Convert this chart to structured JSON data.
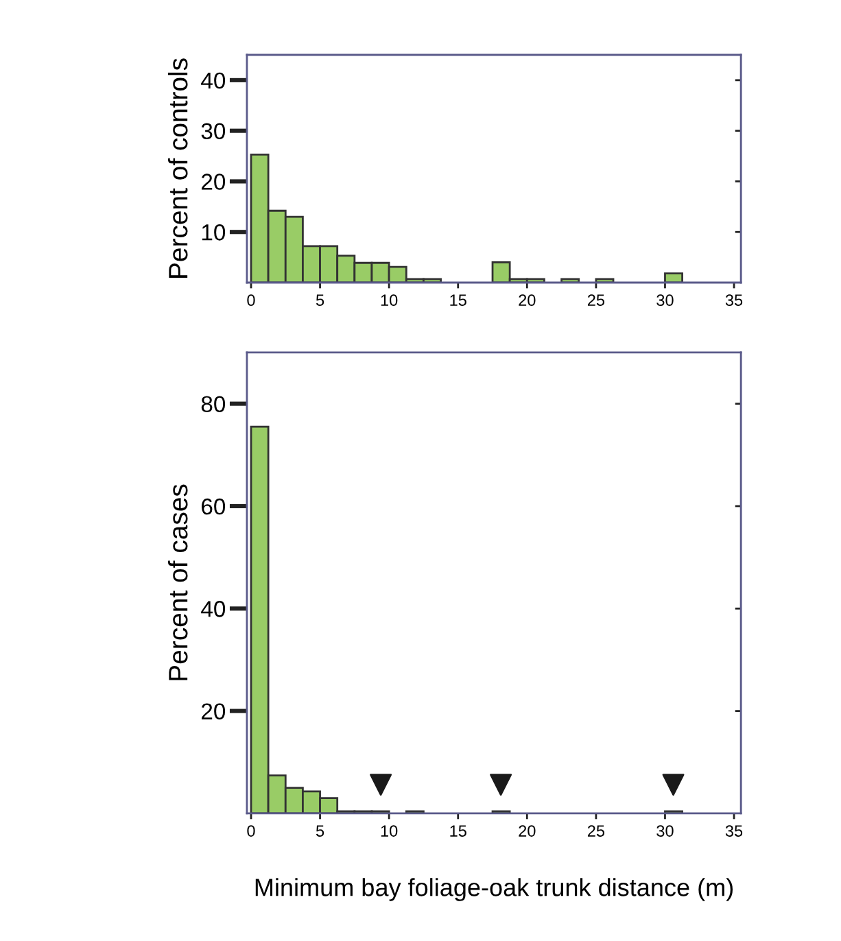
{
  "chart_data": [
    {
      "type": "histogram",
      "ylabel": "Percent of controls",
      "color": "#99cc66",
      "bins": [
        0,
        1.25,
        2.5,
        3.75,
        5,
        6.25,
        7.5,
        8.75,
        10,
        11.25,
        12.5,
        13.75,
        15,
        16.25,
        17.5,
        18.75,
        20,
        21.25,
        22.5,
        23.75,
        25,
        26.25,
        27.5,
        28.75,
        30,
        31.25
      ],
      "values": [
        25.3,
        14.2,
        13.0,
        7.2,
        7.2,
        5.3,
        3.9,
        3.9,
        3.1,
        0.7,
        0.7,
        0,
        0,
        0,
        4.0,
        0.7,
        0.7,
        0,
        0.7,
        0,
        0.7,
        0,
        0,
        0,
        1.8
      ],
      "xlim": [
        -0.3,
        35.5
      ],
      "ylim": [
        0,
        45
      ],
      "xticks": [
        0,
        5,
        10,
        15,
        20,
        25,
        30,
        35
      ],
      "yticks": [
        10,
        20,
        30,
        40
      ]
    },
    {
      "type": "histogram",
      "ylabel": "Percent of cases",
      "xlabel": "Minimum bay foliage-oak trunk distance (m)",
      "bins": [
        0,
        1.25,
        2.5,
        3.75,
        5,
        6.25,
        7.5,
        8.75,
        10,
        11.25,
        12.5,
        13.75,
        15,
        16.25,
        17.5,
        18.75,
        20,
        21.25,
        22.5,
        23.75,
        25,
        26.25,
        27.5,
        28.75,
        30,
        31.25
      ],
      "series": [
        {
          "type": "histogram",
          "color": "#99cc66",
          "values": [
            75.5,
            7.4,
            5.0,
            4.3,
            3.0,
            0.4,
            0.4,
            0.4,
            0,
            0.4,
            0,
            0,
            0,
            0,
            0.4,
            0,
            0,
            0,
            0,
            0,
            0,
            0,
            0,
            0,
            0.4
          ]
        },
        {
          "type": "scatter",
          "color": "#1a1a1a",
          "marker": "triangle",
          "x": [
            9.4,
            18.1,
            30.6
          ],
          "values": [
            5.6,
            5.6,
            5.6
          ]
        }
      ],
      "xlim": [
        -0.3,
        35.5
      ],
      "ylim": [
        0,
        90
      ],
      "xticks": [
        0,
        5,
        10,
        15,
        20,
        25,
        30,
        35
      ],
      "yticks": [
        20,
        40,
        60,
        80
      ]
    }
  ]
}
